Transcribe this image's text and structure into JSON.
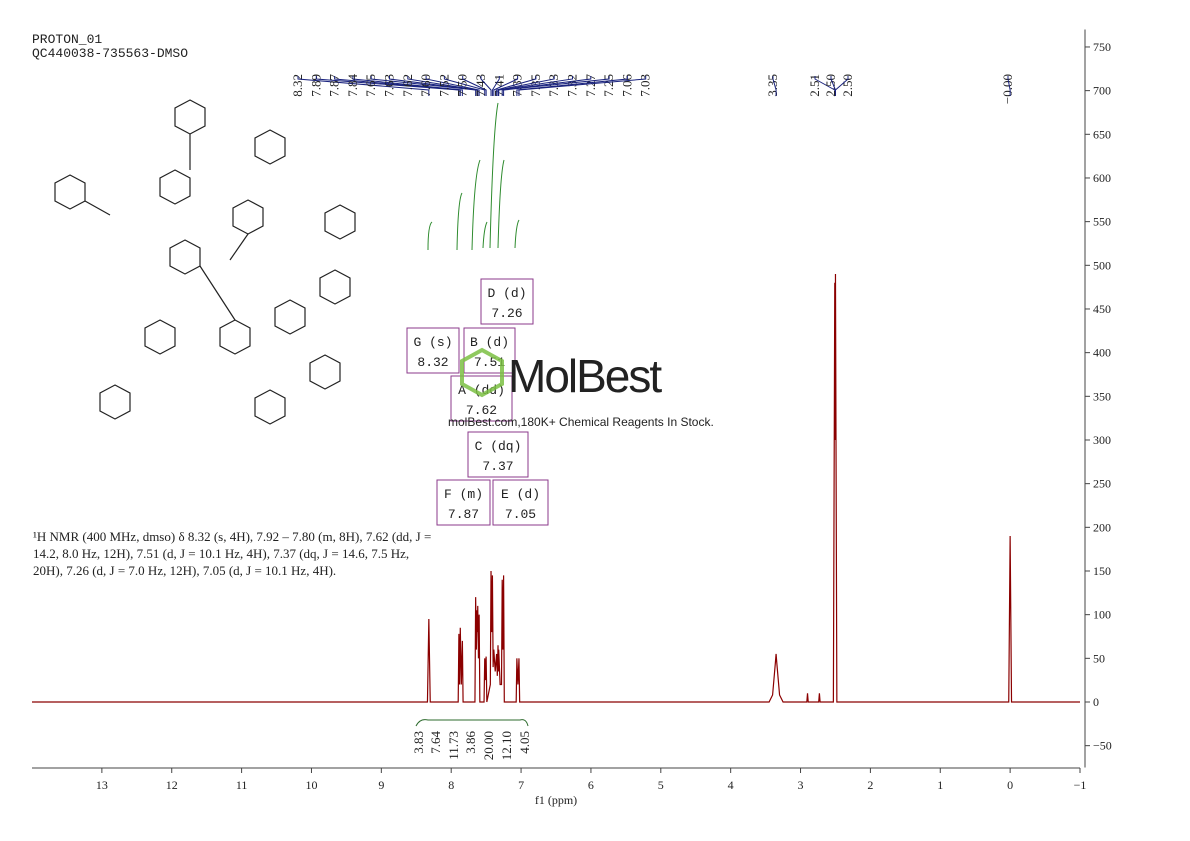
{
  "chart_data": {
    "type": "line",
    "header": [
      "PROTON_01",
      "QC440038-735563-DMSO"
    ],
    "x_label": "f1 (ppm)",
    "xlim": [
      14,
      -1
    ],
    "ylim": [
      -75,
      770
    ],
    "xticks": [
      13,
      12,
      11,
      10,
      9,
      8,
      7,
      6,
      5,
      4,
      3,
      2,
      1,
      0,
      {
        "value": -1,
        "label": "−1"
      }
    ],
    "yticks": [
      {
        "value": -50,
        "label": "−50"
      },
      0,
      50,
      100,
      150,
      200,
      250,
      300,
      350,
      400,
      450,
      500,
      550,
      600,
      650,
      700,
      750
    ],
    "color": "#8b0000",
    "x": [
      14,
      8.34,
      8.32,
      8.3,
      7.9,
      7.89,
      7.88,
      7.87,
      7.855,
      7.84,
      7.83,
      7.66,
      7.65,
      7.64,
      7.63,
      7.625,
      7.62,
      7.61,
      7.6,
      7.59,
      7.53,
      7.52,
      7.51,
      7.5,
      7.49,
      7.44,
      7.43,
      7.42,
      7.41,
      7.4,
      7.39,
      7.37,
      7.35,
      7.34,
      7.33,
      7.325,
      7.32,
      7.3,
      7.28,
      7.27,
      7.26,
      7.25,
      7.24,
      7.07,
      7.06,
      7.045,
      7.03,
      7.02,
      3.45,
      3.4,
      3.36,
      3.35,
      3.34,
      3.3,
      3.25,
      2.91,
      2.9,
      2.89,
      2.74,
      2.73,
      2.72,
      2.53,
      2.51,
      2.505,
      2.5,
      2.48,
      0.02,
      0.0,
      -0.02,
      -1
    ],
    "values": [
      0,
      0,
      95,
      0,
      0,
      78,
      20,
      85,
      20,
      70,
      0,
      0,
      120,
      60,
      105,
      80,
      110,
      50,
      100,
      0,
      0,
      50,
      25,
      52,
      0,
      20,
      150,
      80,
      145,
      40,
      60,
      35,
      55,
      30,
      65,
      35,
      60,
      20,
      20,
      140,
      60,
      145,
      0,
      0,
      50,
      20,
      50,
      0,
      0,
      8,
      45,
      55,
      45,
      8,
      0,
      0,
      10,
      0,
      0,
      10,
      0,
      0,
      480,
      300,
      490,
      0,
      0,
      190,
      0,
      0
    ],
    "peak_labels": [
      {
        "value": 8.32,
        "label": "8.32"
      },
      {
        "value": 7.89,
        "label": "7.89"
      },
      {
        "value": 7.87,
        "label": "7.87"
      },
      {
        "value": 7.84,
        "label": "7.84"
      },
      {
        "value": 7.65,
        "label": "7.65"
      },
      {
        "value": 7.63,
        "label": "7.63"
      },
      {
        "value": 7.62,
        "label": "7.62"
      },
      {
        "value": 7.6,
        "label": "7.60"
      },
      {
        "value": 7.52,
        "label": "7.52"
      },
      {
        "value": 7.5,
        "label": "7.50"
      },
      {
        "value": 7.43,
        "label": "7.43"
      },
      {
        "value": 7.41,
        "label": "7.41"
      },
      {
        "value": 7.39,
        "label": "7.39"
      },
      {
        "value": 7.35,
        "label": "7.35"
      },
      {
        "value": 7.33,
        "label": "7.33"
      },
      {
        "value": 7.32,
        "label": "7.32"
      },
      {
        "value": 7.27,
        "label": "7.27"
      },
      {
        "value": 7.25,
        "label": "7.25"
      },
      {
        "value": 7.06,
        "label": "7.06"
      },
      {
        "value": 7.03,
        "label": "7.03"
      },
      {
        "value": 3.35,
        "label": "3.35"
      },
      {
        "value": 2.51,
        "label": "2.51"
      },
      {
        "value": 2.5,
        "label": "2.50"
      },
      {
        "value": 2.5,
        "label": "2.50"
      },
      {
        "value": 0,
        "label": "−0.00"
      }
    ],
    "integrals": [
      3.83,
      7.64,
      11.73,
      3.86,
      {
        "value": 20,
        "label": "20.00"
      },
      {
        "value": 12.1,
        "label": "12.10"
      },
      4.05
    ],
    "multiplets": [
      {
        "label": "D (d)",
        "shift": 7.26
      },
      {
        "label": "G (s)",
        "shift": 8.32
      },
      {
        "label": "B (d)",
        "shift": 7.51
      },
      {
        "label": "A (dd)",
        "shift": 7.62
      },
      {
        "label": "C (dq)",
        "shift": 7.37
      },
      {
        "label": "F (m)",
        "shift": 7.87
      },
      {
        "label": "E (d)",
        "shift": 7.05
      }
    ],
    "description": [
      "¹H NMR (400 MHz, dmso) δ 8.32 (s, 4H), 7.92 – 7.80 (m, 8H), 7.62 (dd, J =",
      "14.2, 8.0 Hz, 12H), 7.51 (d, J = 10.1 Hz, 4H), 7.37 (dq, J = 14.6, 7.5 Hz,",
      "20H), 7.26 (d, J = 7.0 Hz, 12H), 7.05 (d, J = 10.1 Hz, 4H)."
    ],
    "watermark": {
      "logo": "MolBest",
      "tagline": "molBest.com,180K+ Chemical Reagents In Stock."
    }
  }
}
